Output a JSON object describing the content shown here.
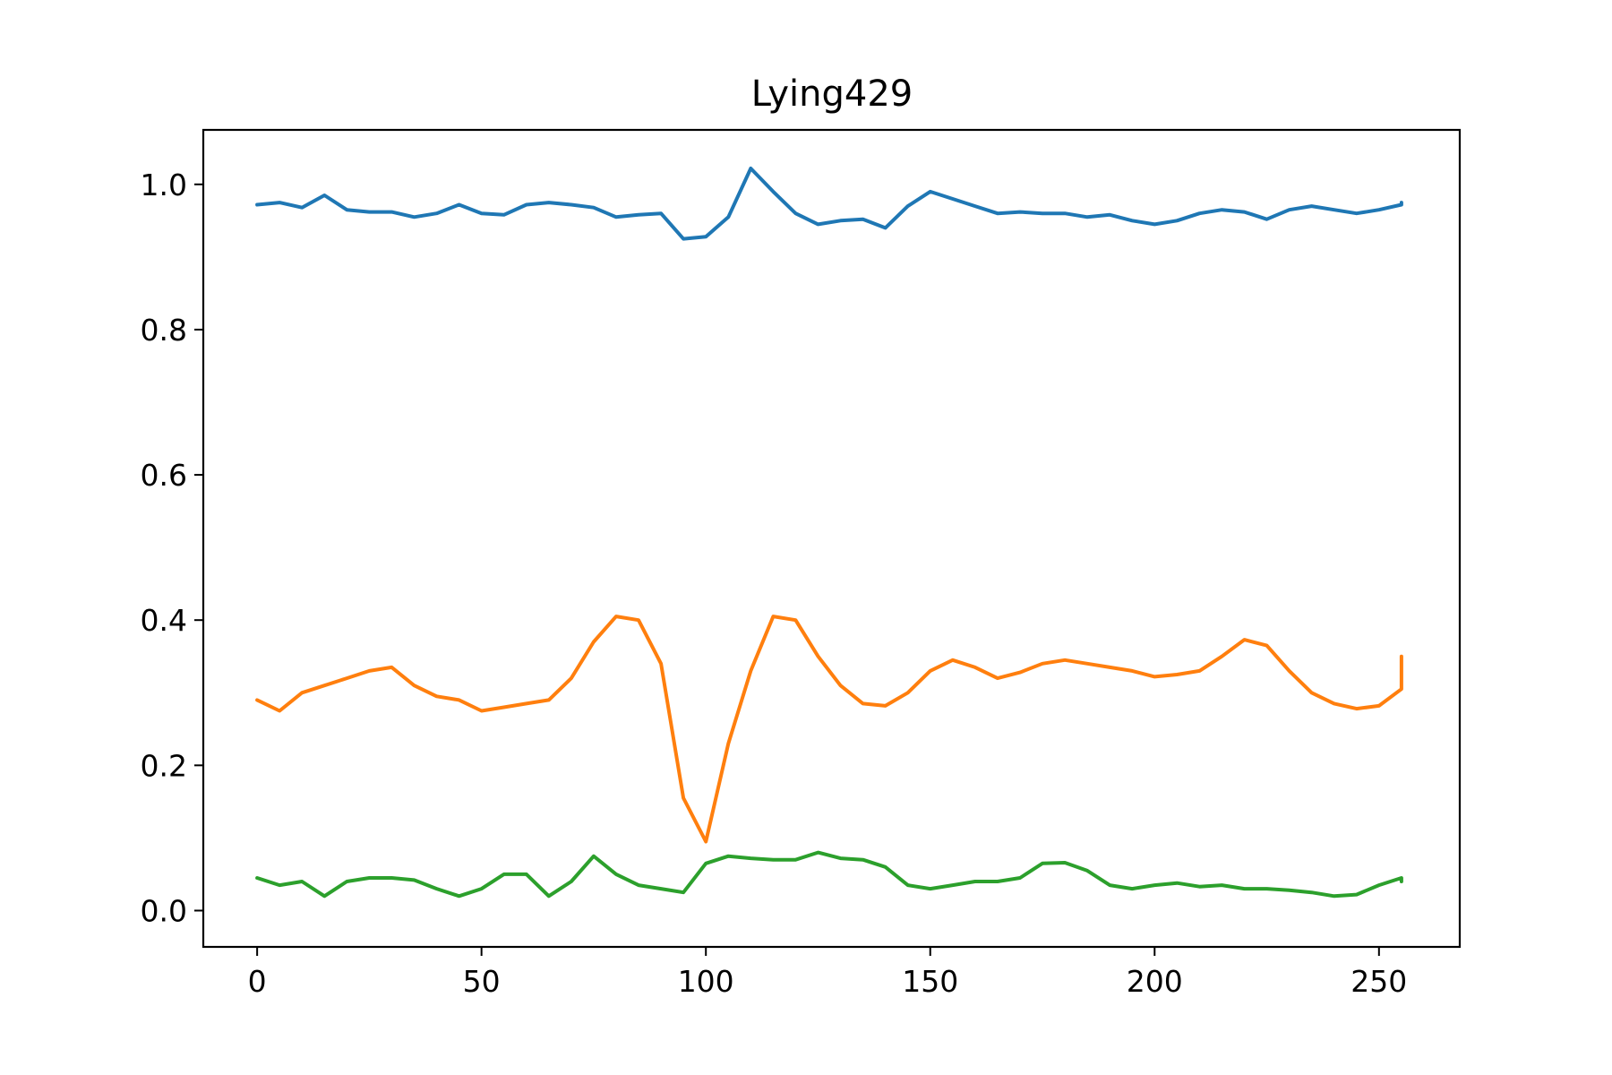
{
  "chart_data": {
    "type": "line",
    "title": "Lying429",
    "xlabel": "",
    "ylabel": "",
    "xlim": [
      -12,
      268
    ],
    "ylim": [
      -0.05,
      1.075
    ],
    "x_ticks": [
      0,
      50,
      100,
      150,
      200,
      250
    ],
    "y_ticks": [
      0.0,
      0.2,
      0.4,
      0.6,
      0.8,
      1.0
    ],
    "x_tick_labels": [
      "0",
      "50",
      "100",
      "150",
      "200",
      "250"
    ],
    "y_tick_labels": [
      "0.0",
      "0.2",
      "0.4",
      "0.6",
      "0.8",
      "1.0"
    ],
    "grid": false,
    "legend": "none",
    "x_step": 5,
    "series": [
      {
        "color": "#1f77b4",
        "values": [
          0.972,
          0.975,
          0.968,
          0.985,
          0.965,
          0.962,
          0.962,
          0.955,
          0.96,
          0.972,
          0.96,
          0.958,
          0.972,
          0.975,
          0.972,
          0.968,
          0.955,
          0.958,
          0.96,
          0.925,
          0.928,
          0.955,
          1.022,
          0.99,
          0.96,
          0.945,
          0.95,
          0.952,
          0.94,
          0.97,
          0.99,
          0.98,
          0.97,
          0.96,
          0.962,
          0.96,
          0.96,
          0.955,
          0.958,
          0.95,
          0.945,
          0.95,
          0.96,
          0.965,
          0.962,
          0.952,
          0.965,
          0.97,
          0.965,
          0.96,
          0.965,
          0.972,
          0.975
        ]
      },
      {
        "color": "#ff7f0e",
        "values": [
          0.29,
          0.275,
          0.3,
          0.31,
          0.32,
          0.33,
          0.335,
          0.31,
          0.295,
          0.29,
          0.275,
          0.28,
          0.285,
          0.29,
          0.32,
          0.37,
          0.405,
          0.4,
          0.34,
          0.155,
          0.095,
          0.23,
          0.33,
          0.405,
          0.4,
          0.35,
          0.31,
          0.285,
          0.282,
          0.3,
          0.33,
          0.345,
          0.335,
          0.32,
          0.328,
          0.34,
          0.345,
          0.34,
          0.335,
          0.33,
          0.322,
          0.325,
          0.33,
          0.35,
          0.373,
          0.365,
          0.33,
          0.3,
          0.285,
          0.278,
          0.282,
          0.305,
          0.35
        ]
      },
      {
        "color": "#2ca02c",
        "values": [
          0.045,
          0.035,
          0.04,
          0.02,
          0.04,
          0.045,
          0.045,
          0.042,
          0.03,
          0.02,
          0.03,
          0.05,
          0.05,
          0.02,
          0.04,
          0.075,
          0.05,
          0.035,
          0.03,
          0.025,
          0.065,
          0.075,
          0.072,
          0.07,
          0.07,
          0.08,
          0.072,
          0.07,
          0.06,
          0.035,
          0.03,
          0.035,
          0.04,
          0.04,
          0.045,
          0.065,
          0.066,
          0.055,
          0.035,
          0.03,
          0.035,
          0.038,
          0.033,
          0.035,
          0.03,
          0.03,
          0.028,
          0.025,
          0.02,
          0.022,
          0.035,
          0.045,
          0.04
        ]
      }
    ]
  }
}
